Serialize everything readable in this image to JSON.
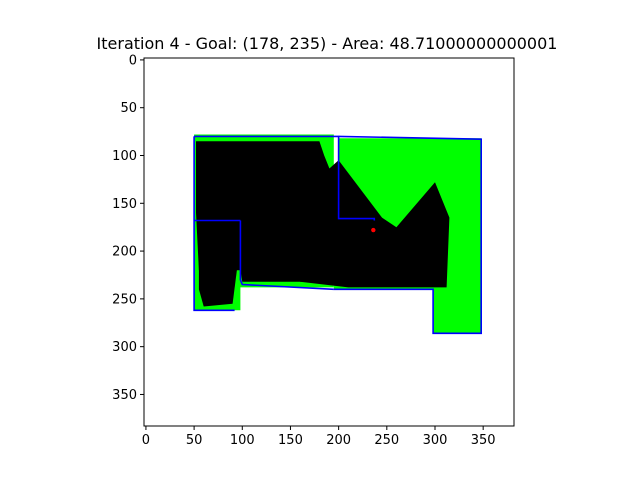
{
  "chart_data": {
    "type": "heatmap",
    "title": "Iteration 4 - Goal: (178, 235) - Area: 48.71000000000001",
    "xlabel": "",
    "ylabel": "",
    "xlim": [
      -2,
      382
    ],
    "ylim": [
      383,
      -2
    ],
    "x_ticks": [
      0,
      50,
      100,
      150,
      200,
      250,
      300,
      350
    ],
    "y_ticks": [
      0,
      50,
      100,
      150,
      200,
      250,
      300,
      350
    ],
    "grid": false,
    "colors": {
      "unknown": "#ffffff",
      "explored": "#00ff00",
      "scan": "#000000",
      "wall": "#0000ff",
      "robot": "#ff0000"
    },
    "regions": [
      {
        "name": "explored",
        "polygon": [
          [
            50,
            78
          ],
          [
            195,
            78
          ],
          [
            195,
            238
          ],
          [
            50,
            238
          ]
        ]
      },
      {
        "name": "explored",
        "polygon": [
          [
            200,
            82
          ],
          [
            348,
            82
          ],
          [
            348,
            168
          ],
          [
            200,
            168
          ]
        ]
      },
      {
        "name": "explored",
        "polygon": [
          [
            298,
            168
          ],
          [
            348,
            168
          ],
          [
            348,
            286
          ],
          [
            298,
            286
          ]
        ]
      },
      {
        "name": "explored",
        "polygon": [
          [
            50,
            168
          ],
          [
            98,
            168
          ],
          [
            98,
            262
          ],
          [
            50,
            262
          ]
        ]
      },
      {
        "name": "explored",
        "polygon": [
          [
            195,
            168
          ],
          [
            300,
            168
          ],
          [
            300,
            240
          ],
          [
            195,
            240
          ]
        ]
      }
    ],
    "scan": [
      {
        "name": "scan",
        "polygon": [
          [
            52,
            85
          ],
          [
            180,
            85
          ],
          [
            185,
            100
          ],
          [
            195,
            125
          ],
          [
            200,
            160
          ],
          [
            210,
            190
          ],
          [
            195,
            232
          ],
          [
            100,
            232
          ],
          [
            98,
            220
          ],
          [
            55,
            220
          ],
          [
            52,
            160
          ]
        ]
      },
      {
        "name": "scan",
        "polygon": [
          [
            55,
            170
          ],
          [
            95,
            170
          ],
          [
            95,
            215
          ],
          [
            90,
            255
          ],
          [
            60,
            258
          ],
          [
            55,
            240
          ]
        ]
      },
      {
        "name": "scan",
        "polygon": [
          [
            150,
            150
          ],
          [
            200,
            105
          ],
          [
            245,
            165
          ],
          [
            260,
            175
          ],
          [
            300,
            128
          ],
          [
            315,
            165
          ],
          [
            312,
            238
          ],
          [
            210,
            238
          ],
          [
            160,
            232
          ]
        ]
      },
      {
        "name": "scan",
        "polygon": [
          [
            103,
            165
          ],
          [
            130,
            175
          ],
          [
            140,
            185
          ],
          [
            110,
            210
          ],
          [
            100,
            200
          ]
        ]
      }
    ],
    "walls": [
      {
        "name": "wall",
        "polyline": [
          [
            50,
            80
          ],
          [
            200,
            80
          ],
          [
            200,
            166
          ],
          [
            237,
            166
          ],
          [
            237,
            168
          ]
        ]
      },
      {
        "name": "wall",
        "polyline": [
          [
            200,
            80
          ],
          [
            348,
            83
          ],
          [
            348,
            286
          ],
          [
            298,
            286
          ],
          [
            298,
            240
          ],
          [
            195,
            240
          ]
        ]
      },
      {
        "name": "wall",
        "polyline": [
          [
            50,
            80
          ],
          [
            50,
            262
          ],
          [
            92,
            262
          ]
        ]
      },
      {
        "name": "wall",
        "polyline": [
          [
            98,
            168
          ],
          [
            98,
            230
          ],
          [
            100,
            235
          ],
          [
            195,
            240
          ]
        ]
      },
      {
        "name": "wall",
        "polyline": [
          [
            50,
            168
          ],
          [
            98,
            168
          ]
        ]
      }
    ],
    "robot": {
      "x": 236,
      "y": 178
    }
  }
}
